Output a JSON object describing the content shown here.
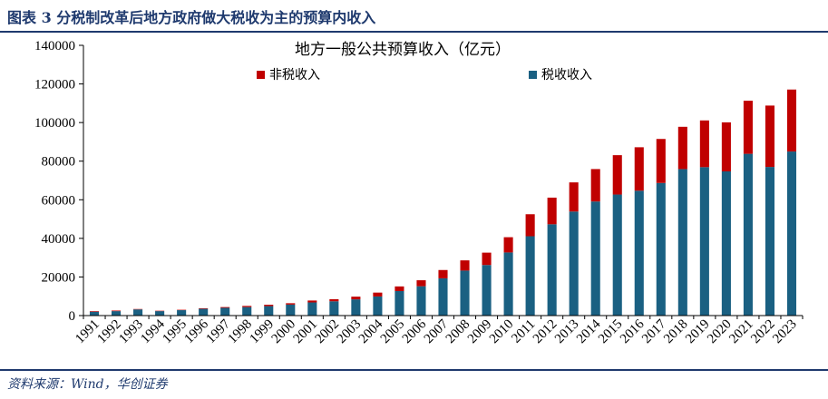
{
  "figure": {
    "title": "图表 3   分税制改革后地方政府做大税收为主的预算内收入",
    "source": "资料来源：Wind，华创证券"
  },
  "colors": {
    "tax": "#1a6082",
    "nontax": "#c00000",
    "rule": "#1f3a6e"
  },
  "chart_data": {
    "type": "bar",
    "stacked": true,
    "title": "地方一般公共预算收入（亿元）",
    "xlabel": "",
    "ylabel": "",
    "ylim": [
      0,
      140000
    ],
    "yticks": [
      0,
      20000,
      40000,
      60000,
      80000,
      100000,
      120000,
      140000
    ],
    "ytick_labels": [
      "0",
      "20000",
      "40000",
      "60000",
      "80000",
      "100000",
      "120000",
      "140000"
    ],
    "legend_position": "top",
    "categories": [
      "1991",
      "1992",
      "1993",
      "1994",
      "1995",
      "1996",
      "1997",
      "1998",
      "1999",
      "2000",
      "2001",
      "2002",
      "2003",
      "2004",
      "2005",
      "2006",
      "2007",
      "2008",
      "2009",
      "2010",
      "2011",
      "2012",
      "2013",
      "2014",
      "2015",
      "2016",
      "2017",
      "2018",
      "2019",
      "2020",
      "2021",
      "2022",
      "2023"
    ],
    "series": [
      {
        "name": "税收收入",
        "color_key": "tax",
        "values": [
          2000,
          2300,
          3200,
          2300,
          2800,
          3500,
          4000,
          4400,
          4900,
          5700,
          6800,
          7400,
          8400,
          9900,
          12700,
          15200,
          19300,
          23300,
          26200,
          32700,
          41100,
          47300,
          53900,
          59100,
          62700,
          64700,
          68700,
          75900,
          76900,
          74700,
          83800,
          77000,
          85000
        ]
      },
      {
        "name": "非税收入",
        "color_key": "nontax",
        "values": [
          300,
          300,
          200,
          200,
          200,
          300,
          400,
          600,
          700,
          700,
          1000,
          1100,
          1400,
          2000,
          2400,
          3100,
          4300,
          5300,
          6400,
          7900,
          11400,
          13800,
          15100,
          16800,
          20400,
          22500,
          22800,
          21900,
          24200,
          25400,
          27500,
          31800,
          32100
        ]
      }
    ]
  }
}
